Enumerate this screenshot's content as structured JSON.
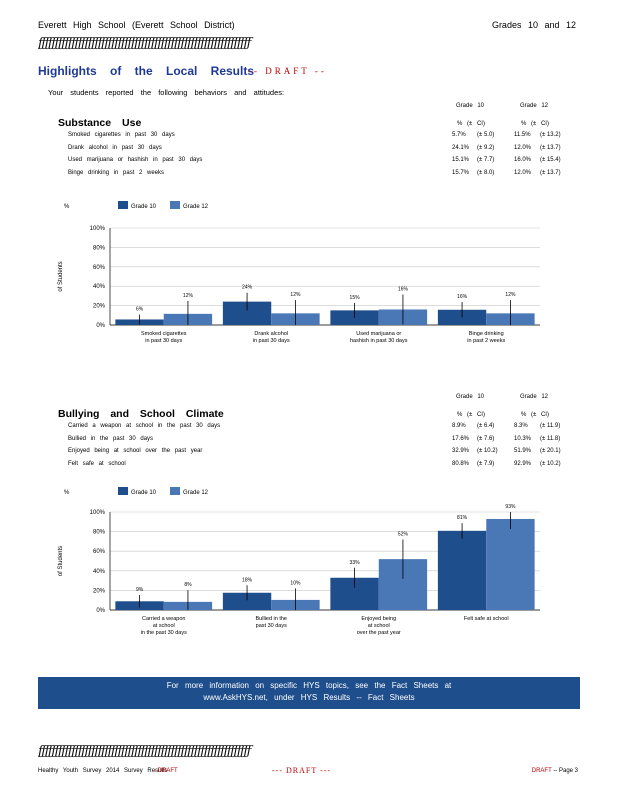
{
  "header": {
    "left": "Everett High School (Everett School District)",
    "right": "Grades 10 and 12"
  },
  "rule_glyphs": "ƒƒƒƒƒƒƒƒƒƒƒƒƒƒƒƒƒƒƒƒƒƒƒƒƒƒƒƒƒƒƒƒƒƒƒƒƒƒƒƒƒƒƒƒƒƒƒƒƒƒƒƒƒƒƒƒƒƒƒƒƒƒƒƒ",
  "title": "Highlights of the Local Results",
  "title_draft": "-- DRAFT --",
  "intro": "Your students reported the following behaviors and attitudes:",
  "colors": {
    "grade10": "#1f4e8c",
    "grade12": "#4a78b6",
    "title": "#1f3a93",
    "draft": "#c00000"
  },
  "substance": {
    "section_title": "Substance Use",
    "col_grade10": "Grade 10",
    "col_grade12": "Grade 12",
    "ci_header": "% (± CI)",
    "rows": [
      {
        "label": "Smoked cigarettes in past 30 days",
        "g10": "5.7%",
        "g10_ci": "(± 5.0)",
        "g12": "11.5%",
        "g12_ci": "(± 13.2)"
      },
      {
        "label": "Drank alcohol in past 30 days",
        "g10": "24.1%",
        "g10_ci": "(± 9.2)",
        "g12": "12.0%",
        "g12_ci": "(± 13.7)"
      },
      {
        "label": "Used marijuana or hashish in past 30 days",
        "g10": "15.1%",
        "g10_ci": "(± 7.7)",
        "g12": "16.0%",
        "g12_ci": "(± 15.4)"
      },
      {
        "label": "Binge drinking in past 2 weeks",
        "g10": "15.7%",
        "g10_ci": "(± 8.0)",
        "g12": "12.0%",
        "g12_ci": "(± 13.7)"
      }
    ]
  },
  "bullying": {
    "section_title": "Bullying and School Climate",
    "col_grade10": "Grade 10",
    "col_grade12": "Grade 12",
    "ci_header": "% (± CI)",
    "rows": [
      {
        "label": "Carried a weapon at school in the past 30 days",
        "g10": "8.9%",
        "g10_ci": "(± 6.4)",
        "g12": "8.3%",
        "g12_ci": "(± 11.9)"
      },
      {
        "label": "Bullied in the past 30 days",
        "g10": "17.6%",
        "g10_ci": "(± 7.6)",
        "g12": "10.3%",
        "g12_ci": "(± 11.8)"
      },
      {
        "label": "Enjoyed being at school over the past year",
        "g10": "32.9%",
        "g10_ci": "(± 10.2)",
        "g12": "51.9%",
        "g12_ci": "(± 20.1)"
      },
      {
        "label": "Felt safe at school",
        "g10": "80.8%",
        "g10_ci": "(± 7.9)",
        "g12": "92.9%",
        "g12_ci": "(± 10.2)"
      }
    ]
  },
  "chart_data": [
    {
      "type": "bar",
      "legend_title": "%",
      "ylabel": "of Students",
      "ylim": [
        0,
        100
      ],
      "yticks": [
        "0%",
        "20%",
        "40%",
        "60%",
        "80%",
        "100%"
      ],
      "categories": [
        [
          "Smoked cigarettes",
          "in past 30 days"
        ],
        [
          "Drank alcohol",
          "in past 30 days"
        ],
        [
          "Used marijuana or",
          "hashish in past 30 days"
        ],
        [
          "Binge drinking",
          "in past 2 weeks"
        ]
      ],
      "series": [
        {
          "name": "Grade 10",
          "values": [
            5.7,
            24.1,
            15.1,
            15.7
          ],
          "ci": [
            5.0,
            9.2,
            7.7,
            8.0
          ],
          "labels": [
            "6%",
            "24%",
            "15%",
            "16%"
          ]
        },
        {
          "name": "Grade 12",
          "values": [
            11.5,
            12.0,
            16.0,
            12.0
          ],
          "ci": [
            13.2,
            13.7,
            15.4,
            13.7
          ],
          "labels": [
            "12%",
            "12%",
            "16%",
            "12%"
          ]
        }
      ]
    },
    {
      "type": "bar",
      "legend_title": "%",
      "ylabel": "of Students",
      "ylim": [
        0,
        100
      ],
      "yticks": [
        "0%",
        "20%",
        "40%",
        "60%",
        "80%",
        "100%"
      ],
      "categories": [
        [
          "Carried a weapon",
          "at school",
          "in the past 30 days"
        ],
        [
          "Bullied in the",
          "past 30 days"
        ],
        [
          "Enjoyed being",
          "at school",
          "over the past year"
        ],
        [
          "Felt safe at school"
        ]
      ],
      "series": [
        {
          "name": "Grade 10",
          "values": [
            8.9,
            17.6,
            32.9,
            80.8
          ],
          "ci": [
            6.4,
            7.6,
            10.2,
            7.9
          ],
          "labels": [
            "9%",
            "18%",
            "33%",
            "81%"
          ]
        },
        {
          "name": "Grade 12",
          "values": [
            8.3,
            10.3,
            51.9,
            92.9
          ],
          "ci": [
            11.9,
            11.8,
            20.1,
            10.2
          ],
          "labels": [
            "8%",
            "10%",
            "52%",
            "93%"
          ]
        }
      ]
    }
  ],
  "banner": {
    "line1": "For more information on specific HYS topics, see the Fact Sheets at",
    "line2": "www.AskHYS.net, under HYS Results -- Fact Sheets"
  },
  "footer": {
    "left": "Healthy Youth Survey 2014 Survey Results",
    "left_draft": "-- DRAFT",
    "center": "--- DRAFT ---",
    "right_draft": "DRAFT",
    "right_page": "-- Page 3"
  }
}
